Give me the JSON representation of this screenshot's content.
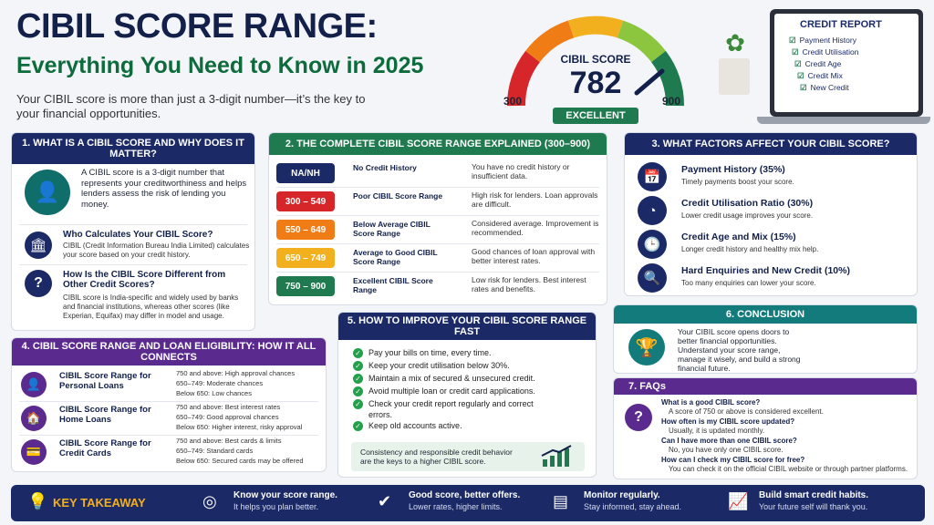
{
  "title": "CIBIL SCORE RANGE:",
  "subtitle": "Everything You Need to Know in 2025",
  "intro": "Your CIBIL score is more than just a 3-digit number—it’s the key to your financial opportunities.",
  "gauge": {
    "label": "CIBIL SCORE",
    "value": "782",
    "min": "300",
    "max": "900",
    "rating": "EXCELLENT",
    "fraction": 0.8
  },
  "laptop": {
    "title": "CREDIT REPORT",
    "items": [
      "Payment History",
      "Credit Utilisation",
      "Credit Age",
      "Credit Mix",
      "New Credit"
    ]
  },
  "s1": {
    "title": "1.  WHAT IS A CIBIL SCORE AND WHY DOES IT MATTER?",
    "body": "A CIBIL score is a 3-digit number that represents your creditworthiness and helps lenders assess the risk of lending you money.",
    "who_title": "Who Calculates Your CIBIL Score?",
    "who_body": "CIBIL (Credit Information Bureau India Limited) calculates your score based on your credit history.",
    "diff_title": "How Is the CIBIL Score Different from Other Credit Scores?",
    "diff_body": "CIBIL score is India-specific and widely used by banks and financial institutions, whereas other scores (like Experian, Equifax) may differ in model and usage."
  },
  "s2": {
    "title": "2.  THE COMPLETE CIBIL SCORE RANGE EXPLAINED (300–900)",
    "rows": [
      {
        "range": "NA/NH",
        "label": "No Credit History",
        "desc": "You have no credit history or insufficient data.",
        "color": "#1b2a67"
      },
      {
        "range": "300 – 549",
        "label": "Poor CIBIL Score Range",
        "desc": "High risk for lenders. Loan approvals are difficult.",
        "color": "#d7262a"
      },
      {
        "range": "550 – 649",
        "label": "Below Average CIBIL Score Range",
        "desc": "Considered average. Improvement is recommended.",
        "color": "#f07c16"
      },
      {
        "range": "650 – 749",
        "label": "Average to Good CIBIL Score Range",
        "desc": "Good chances of loan approval with better interest rates.",
        "color": "#f2b01e"
      },
      {
        "range": "750 – 900",
        "label": "Excellent CIBIL Score Range",
        "desc": "Low risk for lenders. Best interest rates and benefits.",
        "color": "#1f7a4f"
      }
    ]
  },
  "s3": {
    "title": "3.  WHAT FACTORS AFFECT YOUR CIBIL SCORE?",
    "items": [
      {
        "title": "Payment History (35%)",
        "desc": "Timely payments boost your score."
      },
      {
        "title": "Credit Utilisation Ratio (30%)",
        "desc": "Lower credit usage improves your score."
      },
      {
        "title": "Credit Age and Mix (15%)",
        "desc": "Longer credit history and healthy mix help."
      },
      {
        "title": "Hard Enquiries and New Credit (10%)",
        "desc": "Too many enquiries can lower your score."
      }
    ]
  },
  "s4": {
    "title": "4.  CIBIL SCORE RANGE AND LOAN ELIGIBILITY: HOW IT ALL CONNECTS",
    "rows": [
      {
        "name": "CIBIL Score Range for Personal Loans",
        "l1": "750 and above: High approval chances",
        "l2": "650–749: Moderate chances",
        "l3": "Below 650: Low chances"
      },
      {
        "name": "CIBIL Score Range for Home Loans",
        "l1": "750 and above: Best interest rates",
        "l2": "650–749: Good approval chances",
        "l3": "Below 650: Higher interest, risky approval"
      },
      {
        "name": "CIBIL Score Range for Credit Cards",
        "l1": "750 and above: Best cards & limits",
        "l2": "650–749: Standard cards",
        "l3": "Below 650: Secured cards may be offered"
      }
    ]
  },
  "s5": {
    "title": "5.  HOW TO IMPROVE YOUR CIBIL SCORE RANGE FAST",
    "items": [
      "Pay your bills on time, every time.",
      "Keep your credit utilisation below 30%.",
      "Maintain a mix of secured & unsecured credit.",
      "Avoid multiple loan or credit card applications.",
      "Check your credit report regularly and correct errors.",
      "Keep old accounts active."
    ],
    "note": "Consistency and responsible credit behavior are the keys to a higher CIBIL score."
  },
  "s6": {
    "title": "6.  CONCLUSION",
    "body": "Your CIBIL score opens doors to better financial opportunities. Understand your score range, manage it wisely, and build a strong financial future."
  },
  "s7": {
    "title": "7.  FAQs",
    "items": [
      {
        "q": "What is a good CIBIL score?",
        "a": "A score of 750 or above is considered excellent."
      },
      {
        "q": "How often is my CIBIL score updated?",
        "a": "Usually, it is updated monthly."
      },
      {
        "q": "Can I have more than one CIBIL score?",
        "a": "No, you have only one CIBIL score."
      },
      {
        "q": "How can I check my CIBIL score for free?",
        "a": "You can check it on the official CIBIL website or through partner platforms."
      }
    ]
  },
  "footer": {
    "label": "KEY TAKEAWAY",
    "items": [
      {
        "t": "Know your score range.",
        "s": "It helps you plan better."
      },
      {
        "t": "Good score, better offers.",
        "s": "Lower rates, higher limits."
      },
      {
        "t": "Monitor regularly.",
        "s": "Stay informed, stay ahead."
      },
      {
        "t": "Build smart credit habits.",
        "s": "Your future self will thank you."
      }
    ]
  },
  "colors": {
    "navy": "#1b2a67",
    "green": "#1f7a4f",
    "purple": "#5a2a8e",
    "teal": "#137b7b"
  }
}
